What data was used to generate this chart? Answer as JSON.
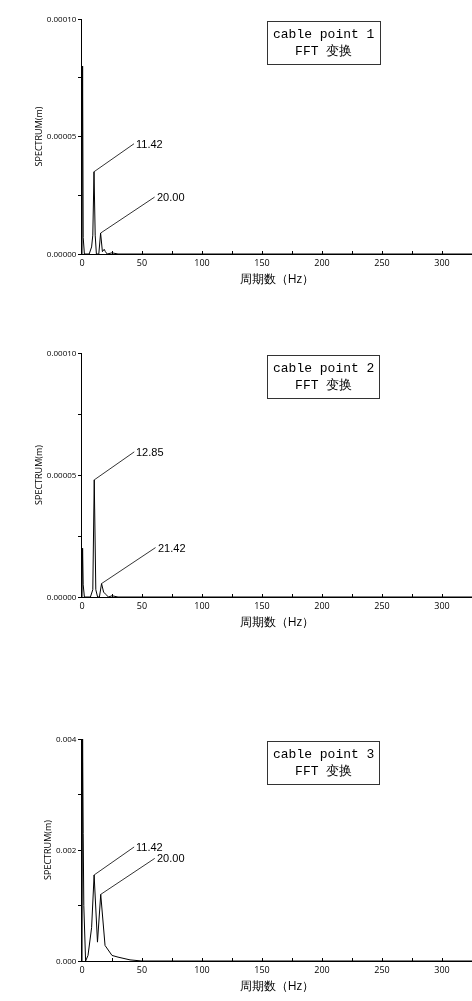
{
  "chart_data": [
    {
      "type": "line",
      "title": "cable point 1\nFFT 变换",
      "xlabel": "周期数（Hz）",
      "ylabel": "SPECTRUM(m)",
      "color": "#000000",
      "x": [
        0,
        0.5,
        1,
        2,
        6,
        8,
        9,
        10,
        11,
        12,
        14,
        15.5,
        17,
        18.5,
        19.5,
        21,
        25,
        30,
        60,
        100,
        150,
        200,
        250,
        300,
        325
      ],
      "values": [
        0,
        8e-05,
        7e-06,
        0,
        0,
        3e-06,
        8e-06,
        3.5e-05,
        8e-06,
        0,
        0,
        8.9e-06,
        1e-06,
        2e-06,
        1e-06,
        0,
        5e-07,
        0,
        0,
        0,
        0,
        0,
        0,
        0,
        0
      ],
      "xlim": [
        0,
        325
      ],
      "ylim": [
        0,
        0.0001
      ],
      "xticks": [
        0,
        {
          "value": 25,
          "label": null
        },
        50,
        {
          "value": 75,
          "label": null
        },
        100,
        {
          "value": 125,
          "label": null
        },
        150,
        {
          "value": 175,
          "label": null
        },
        200,
        {
          "value": 225,
          "label": null
        },
        250,
        {
          "value": 275,
          "label": null
        },
        300
      ],
      "yticks": [
        {
          "value": 0,
          "label": "0.00000"
        },
        {
          "value": 2.5e-05,
          "label": null
        },
        {
          "value": 5e-05,
          "label": "0.00005"
        },
        {
          "value": 7.5e-05,
          "label": null
        },
        {
          "value": 0.0001,
          "label": "0.00010"
        }
      ],
      "annotations": [
        {
          "text": "11.42",
          "x": 10,
          "y": 3.5e-05
        },
        {
          "text": "20.00",
          "x": 15.5,
          "y": 8.9e-06
        }
      ],
      "grid": false,
      "legend": false,
      "marker": "none",
      "line_style": "solid"
    },
    {
      "type": "line",
      "title": "cable point 2\nFFT 变换",
      "xlabel": "周期数（Hz）",
      "ylabel": "SPECTRUM(m)",
      "color": "#000000",
      "x": [
        0,
        0.5,
        1,
        2,
        7,
        9,
        10.2,
        11.5,
        13,
        14.5,
        16.3,
        18,
        20,
        22,
        25,
        30,
        60,
        100,
        150,
        200,
        250,
        300,
        325
      ],
      "values": [
        0,
        2e-05,
        5e-06,
        0,
        0,
        3e-06,
        4.8e-05,
        3e-06,
        0,
        0,
        5.5e-06,
        2e-06,
        1e-06,
        0,
        5e-07,
        0,
        0,
        0,
        0,
        0,
        0,
        0,
        0
      ],
      "xlim": [
        0,
        325
      ],
      "ylim": [
        0,
        0.0001
      ],
      "xticks": [
        0,
        {
          "value": 25,
          "label": null
        },
        50,
        {
          "value": 75,
          "label": null
        },
        100,
        {
          "value": 125,
          "label": null
        },
        150,
        {
          "value": 175,
          "label": null
        },
        200,
        {
          "value": 225,
          "label": null
        },
        250,
        {
          "value": 275,
          "label": null
        },
        300
      ],
      "yticks": [
        {
          "value": 0,
          "label": "0.00000"
        },
        {
          "value": 2.5e-05,
          "label": null
        },
        {
          "value": 5e-05,
          "label": "0.00005"
        },
        {
          "value": 7.5e-05,
          "label": null
        },
        {
          "value": 0.0001,
          "label": "0.00010"
        }
      ],
      "annotations": [
        {
          "text": "12.85",
          "x": 10.2,
          "y": 4.8e-05
        },
        {
          "text": "21.42",
          "x": 16.3,
          "y": 5.5e-06
        }
      ],
      "grid": false,
      "legend": false,
      "marker": "none",
      "line_style": "solid"
    },
    {
      "type": "line",
      "title": "cable point 3\nFFT 变换",
      "xlabel": "周期数（Hz）",
      "ylabel": "SPECTRUM(m)",
      "color": "#000000",
      "x": [
        0,
        0.5,
        1,
        1.5,
        3,
        5,
        8,
        10.1,
        12.9,
        15.6,
        19.2,
        25,
        30,
        40,
        50,
        100,
        150,
        200,
        250,
        300,
        325
      ],
      "values": [
        0,
        0.004,
        0.0023,
        0.001,
        0,
        0.0001,
        0.0006,
        0.00155,
        0.00034,
        0.0012,
        0.00028,
        0.0001,
        7e-05,
        2e-05,
        0,
        0,
        0,
        0,
        0,
        0,
        0
      ],
      "xlim": [
        0,
        325
      ],
      "ylim": [
        0,
        0.004
      ],
      "xticks": [
        0,
        {
          "value": 25,
          "label": null
        },
        50,
        {
          "value": 75,
          "label": null
        },
        100,
        {
          "value": 125,
          "label": null
        },
        150,
        {
          "value": 175,
          "label": null
        },
        200,
        {
          "value": 225,
          "label": null
        },
        250,
        {
          "value": 275,
          "label": null
        },
        300
      ],
      "yticks": [
        {
          "value": 0,
          "label": "0.000"
        },
        {
          "value": 0.001,
          "label": null
        },
        {
          "value": 0.002,
          "label": "0.002"
        },
        {
          "value": 0.003,
          "label": null
        },
        {
          "value": 0.004,
          "label": "0.004"
        }
      ],
      "annotations": [
        {
          "text": "11.42",
          "x": 10.1,
          "y": 0.00155
        },
        {
          "text": "20.00",
          "x": 15.6,
          "y": 0.0012
        }
      ],
      "grid": false,
      "legend": false,
      "marker": "none",
      "line_style": "solid"
    }
  ]
}
